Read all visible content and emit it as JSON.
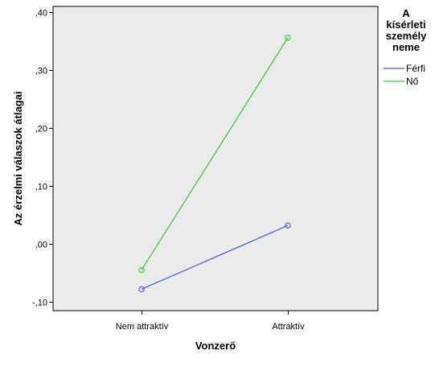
{
  "chart_data": {
    "type": "line",
    "categories": [
      "Nem attraktív",
      "Attraktív"
    ],
    "series": [
      {
        "name": "Férfi",
        "values": [
          -0.078,
          0.032
        ],
        "color": "#4a5cc0"
      },
      {
        "name": "Nő",
        "values": [
          -0.045,
          0.356
        ],
        "color": "#3cc03c"
      }
    ],
    "xlabel": "Vonzerő",
    "ylabel": "Az érzelmi válaszok átlagai",
    "ylim": [
      -0.115,
      0.41
    ],
    "yticks": [
      -0.1,
      0.0,
      0.1,
      0.2,
      0.3,
      0.4
    ],
    "ytick_labels": [
      "-,10",
      ",00",
      ",10",
      ",20",
      ",30",
      ",40"
    ],
    "legend": {
      "title_lines": [
        "A",
        "kísérleti",
        "személy",
        "neme"
      ],
      "placement": "right"
    },
    "plot_background": "#ebebeb",
    "grid": false
  }
}
